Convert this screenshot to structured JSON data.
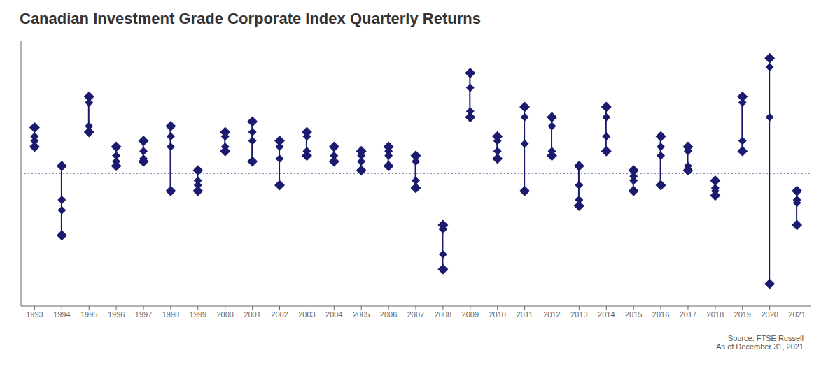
{
  "chart_data": {
    "type": "scatter",
    "title": "Canadian Investment Grade Corporate Index Quarterly Returns",
    "source": "Source: FTSE Russell",
    "note": "As of December 31, 2021",
    "categories": [
      "1993",
      "1994",
      "1995",
      "1996",
      "1997",
      "1998",
      "1999",
      "2000",
      "2001",
      "2002",
      "2003",
      "2004",
      "2005",
      "2006",
      "2007",
      "2008",
      "2009",
      "2010",
      "2011",
      "2012",
      "2013",
      "2014",
      "2015",
      "2016",
      "2017",
      "2018",
      "2019",
      "2020",
      "2021"
    ],
    "values": [
      [
        3.1,
        2.2,
        2.5,
        1.8
      ],
      [
        -4.2,
        -1.8,
        -2.5,
        0.5
      ],
      [
        4.8,
        5.2,
        3.2,
        2.8
      ],
      [
        0.8,
        1.8,
        0.5,
        1.2
      ],
      [
        0.8,
        2.2,
        1.5,
        1.0
      ],
      [
        3.2,
        2.5,
        -1.2,
        1.8
      ],
      [
        -1.2,
        0.2,
        -0.8,
        -0.5
      ],
      [
        2.8,
        2.5,
        1.5,
        1.8
      ],
      [
        2.8,
        3.5,
        0.8,
        2.2
      ],
      [
        1.8,
        2.2,
        -0.8,
        1.0
      ],
      [
        2.5,
        2.8,
        1.5,
        1.2
      ],
      [
        1.8,
        1.8,
        0.8,
        1.2
      ],
      [
        1.2,
        1.5,
        0.2,
        0.8
      ],
      [
        1.5,
        1.8,
        0.5,
        1.2
      ],
      [
        0.8,
        1.2,
        -1.0,
        -0.5
      ],
      [
        -5.5,
        -3.5,
        -6.5,
        -3.8
      ],
      [
        5.8,
        6.8,
        3.8,
        4.2
      ],
      [
        2.2,
        2.5,
        1.0,
        1.5
      ],
      [
        3.8,
        4.5,
        -1.2,
        2.0
      ],
      [
        3.2,
        3.8,
        1.2,
        1.5
      ],
      [
        -2.2,
        -0.8,
        -1.8,
        0.5
      ],
      [
        3.8,
        4.5,
        1.5,
        2.5
      ],
      [
        -0.2,
        0.2,
        -1.2,
        -0.5
      ],
      [
        1.8,
        2.5,
        -0.8,
        1.2
      ],
      [
        1.5,
        1.8,
        0.2,
        0.5
      ],
      [
        -1.2,
        -0.5,
        -1.5,
        -1.0
      ],
      [
        4.8,
        5.2,
        1.5,
        2.2
      ],
      [
        7.2,
        7.8,
        -7.5,
        3.8
      ],
      [
        -3.5,
        -2.0,
        -1.8,
        -1.2
      ]
    ],
    "low": [
      1.8,
      -4.2,
      2.8,
      0.5,
      0.8,
      -1.2,
      -1.2,
      1.5,
      0.8,
      -0.8,
      1.2,
      0.8,
      0.2,
      0.5,
      -1.0,
      -6.5,
      3.8,
      1.0,
      -1.2,
      1.2,
      -2.2,
      1.5,
      -1.2,
      -0.8,
      0.2,
      -1.5,
      1.5,
      -7.5,
      -3.5
    ],
    "high": [
      3.1,
      0.5,
      5.2,
      1.8,
      2.2,
      3.2,
      0.2,
      2.8,
      3.5,
      2.2,
      2.8,
      1.8,
      1.5,
      1.8,
      1.2,
      -3.5,
      6.8,
      2.5,
      4.5,
      3.8,
      0.5,
      4.5,
      0.2,
      2.5,
      1.8,
      -0.5,
      5.2,
      7.8,
      -1.2
    ],
    "reference_y": 0,
    "ylim": [
      -9,
      9
    ],
    "color": "#1a1a6e",
    "marker": "diamond",
    "grid": false,
    "tick_labels": "x"
  }
}
